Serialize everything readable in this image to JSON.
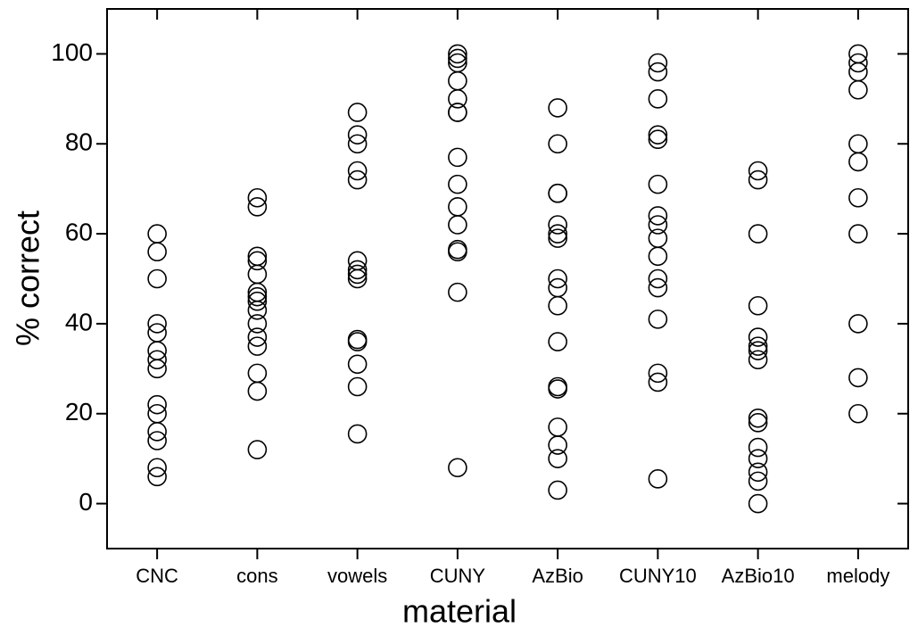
{
  "chart_data": {
    "type": "strip",
    "xlabel": "material",
    "ylabel": "% correct",
    "categories": [
      "CNC",
      "cons",
      "vowels",
      "CUNY",
      "AzBio",
      "CUNY10",
      "AzBio10",
      "melody"
    ],
    "values": [
      [
        60,
        56,
        50,
        40,
        38,
        34,
        32,
        30,
        22,
        20,
        16,
        14,
        8,
        6
      ],
      [
        68,
        66,
        55,
        54,
        51,
        47,
        46,
        45,
        43,
        40,
        37,
        35,
        29,
        25,
        12
      ],
      [
        87,
        82,
        80,
        74,
        72,
        54,
        52,
        51,
        50,
        36.5,
        36,
        31,
        26,
        15.5
      ],
      [
        100,
        99,
        98,
        94,
        90,
        87,
        87,
        77,
        71,
        66,
        62,
        56.5,
        56,
        47,
        8
      ],
      [
        88,
        80,
        69,
        69,
        62,
        60,
        59,
        50,
        48,
        44,
        36,
        26,
        25.5,
        17,
        13,
        10,
        3
      ],
      [
        98,
        96,
        90,
        82,
        81,
        71,
        64,
        62,
        59,
        55,
        50,
        48,
        41,
        29,
        27,
        5.5
      ],
      [
        74,
        72,
        60,
        44,
        37,
        35,
        34,
        32,
        19,
        18,
        12.5,
        10,
        7,
        5,
        0
      ],
      [
        100,
        98,
        96,
        92,
        80,
        76,
        68,
        60,
        40,
        28,
        20
      ]
    ],
    "marker": "open-circle",
    "color": "#000000",
    "ylim": [
      -10,
      110
    ],
    "yticks": [
      0,
      20,
      40,
      60,
      80,
      100
    ],
    "grid": false
  }
}
